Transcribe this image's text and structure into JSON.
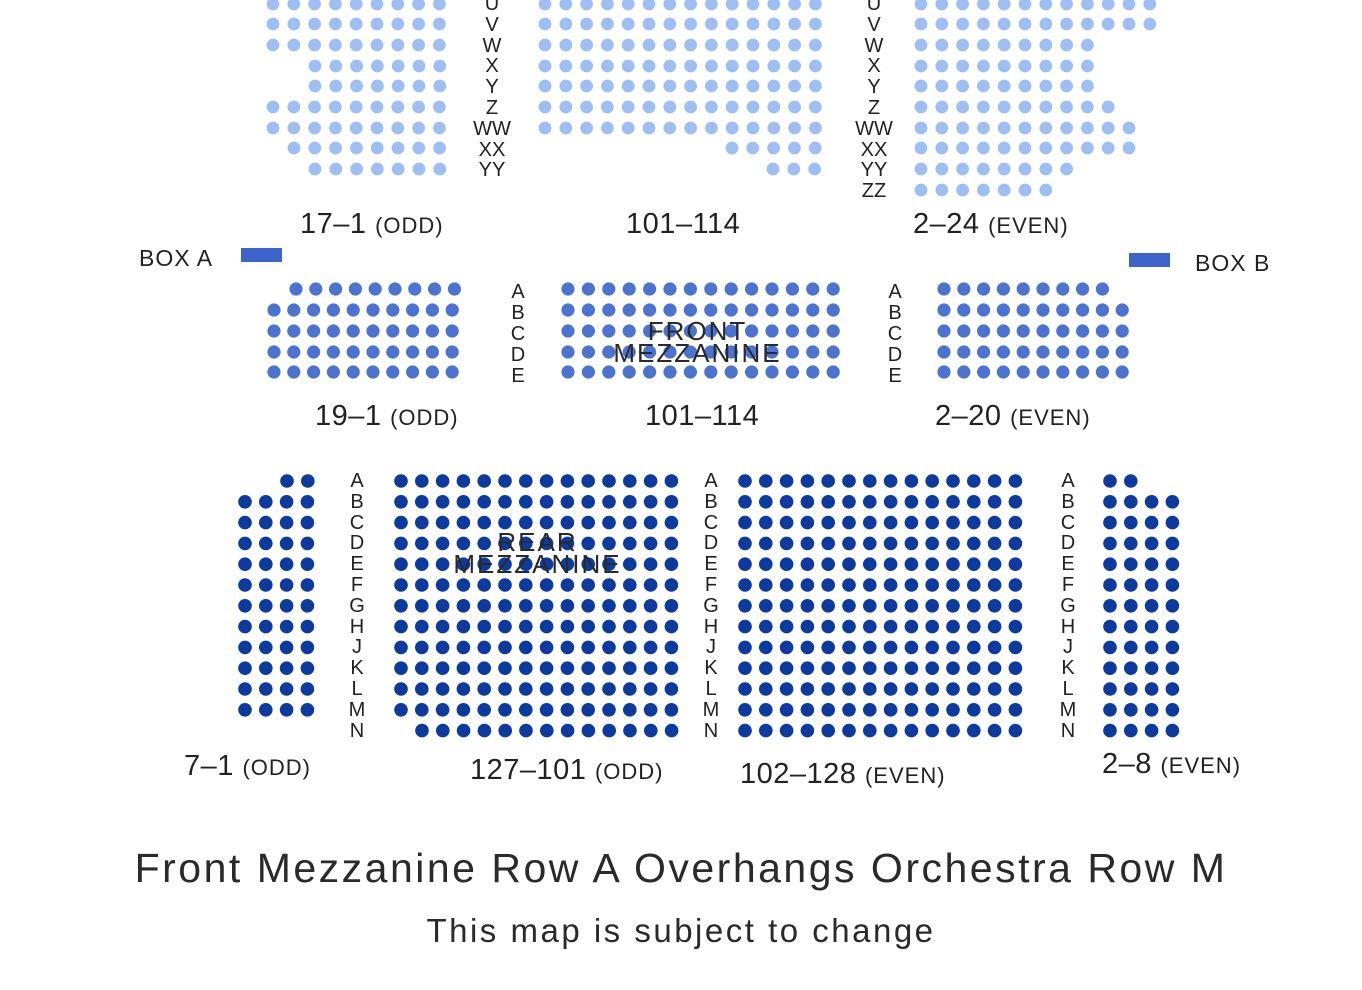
{
  "colors": {
    "orchestra": "#9ebff4",
    "front_mezzanine": "#4b73cf",
    "rear_mezzanine": "#0c3a9e",
    "box": "#3d64cc"
  },
  "orchestra": {
    "rows_left": [
      "U",
      "V",
      "W",
      "X",
      "Y",
      "Z",
      "WW",
      "XX",
      "YY"
    ],
    "rows_right": [
      "U",
      "V",
      "W",
      "X",
      "Y",
      "Z",
      "WW",
      "XX",
      "YY",
      "ZZ"
    ],
    "left_label": {
      "range": "17–1",
      "parity": "(ODD)"
    },
    "center_label": {
      "range": "101–114"
    },
    "right_label": {
      "range": "2–24",
      "parity": "(EVEN)"
    }
  },
  "boxes": {
    "a_label": "BOX A",
    "b_label": "BOX B"
  },
  "front_mezzanine": {
    "name_line1": "FRONT",
    "name_line2": "MEZZANINE",
    "rows": [
      "A",
      "B",
      "C",
      "D",
      "E"
    ],
    "left_label": {
      "range": "19–1",
      "parity": "(ODD)"
    },
    "center_label": {
      "range": "101–114"
    },
    "right_label": {
      "range": "2–20",
      "parity": "(EVEN)"
    }
  },
  "rear_mezzanine": {
    "name_line1": "REAR",
    "name_line2": "MEZZANINE",
    "rows": [
      "A",
      "B",
      "C",
      "D",
      "E",
      "F",
      "G",
      "H",
      "J",
      "K",
      "L",
      "M",
      "N"
    ],
    "left_label": {
      "range": "7–1",
      "parity": "(ODD)"
    },
    "center_left_label": {
      "range": "127–101",
      "parity": "(ODD)"
    },
    "center_right_label": {
      "range": "102–128",
      "parity": "(EVEN)"
    },
    "right_label": {
      "range": "2–8",
      "parity": "(EVEN)"
    }
  },
  "footer": {
    "title": "Front Mezzanine Row A Overhangs Orchestra Row M",
    "note": "This map is subject to change"
  }
}
